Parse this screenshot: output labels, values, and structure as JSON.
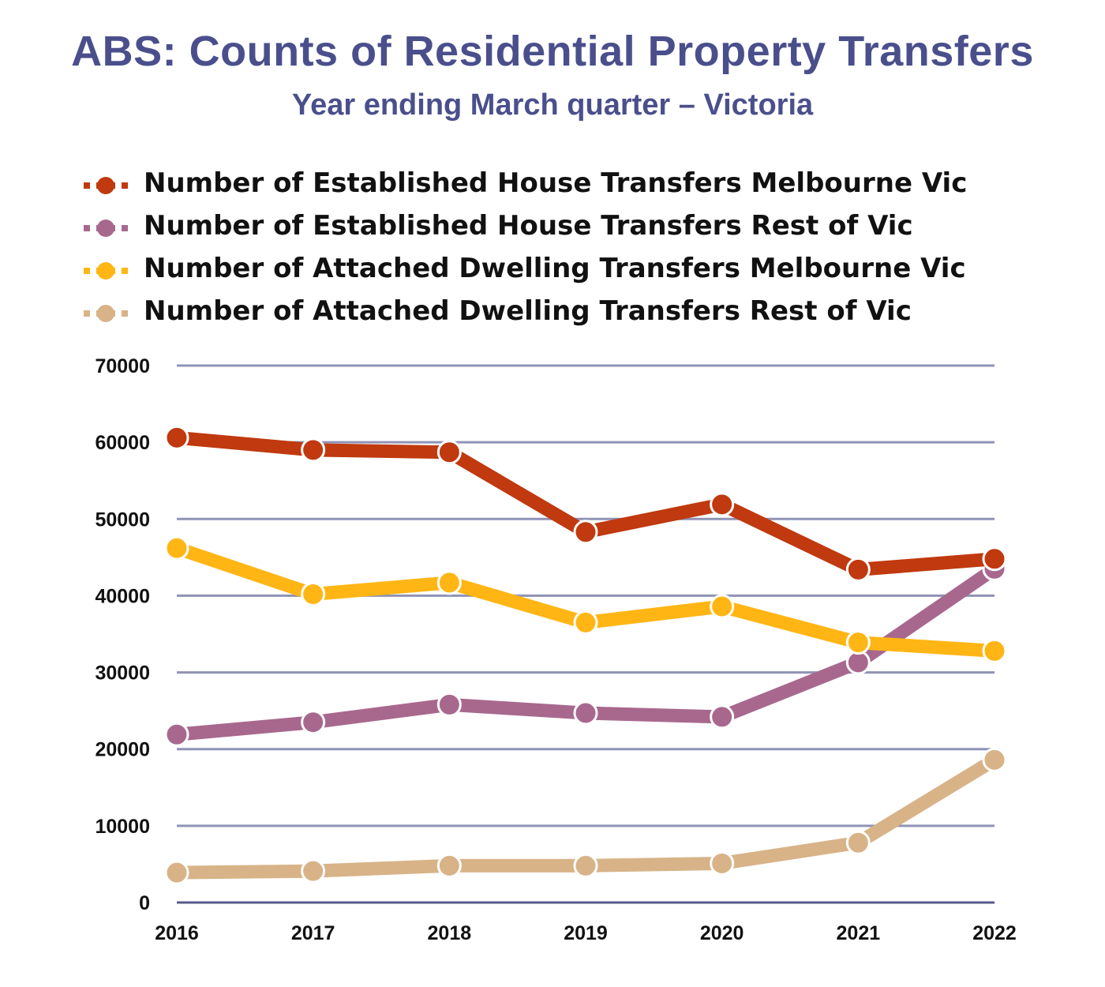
{
  "chart_data": {
    "type": "line",
    "title": "ABS: Counts of Residential Property Transfers",
    "subtitle": "Year ending March quarter – Victoria",
    "xlabel": "",
    "ylabel": "",
    "x": [
      "2016",
      "2017",
      "2018",
      "2019",
      "2020",
      "2021",
      "2022"
    ],
    "ylim": [
      0,
      70000
    ],
    "yticks": [
      "0",
      "10000",
      "20000",
      "30000",
      "40000",
      "50000",
      "60000",
      "70000"
    ],
    "grid": true,
    "legend_position": "top",
    "series": [
      {
        "name": "Number of Established House Transfers Melbourne Vic",
        "color": "#c0390f",
        "values": [
          60600,
          59000,
          58700,
          48300,
          51900,
          43400,
          44800
        ]
      },
      {
        "name": "Number of Established House Transfers Rest of Vic",
        "color": "#a8688e",
        "values": [
          21900,
          23500,
          25800,
          24700,
          24200,
          31300,
          43500
        ]
      },
      {
        "name": "Number of Attached Dwelling Transfers Melbourne Vic",
        "color": "#ffb615",
        "values": [
          46200,
          40200,
          41700,
          36500,
          38600,
          33900,
          32800
        ]
      },
      {
        "name": "Number of Attached Dwelling Transfers Rest of Vic",
        "color": "#d8b388",
        "values": [
          3900,
          4100,
          4800,
          4800,
          5100,
          7800,
          18600
        ]
      }
    ]
  }
}
